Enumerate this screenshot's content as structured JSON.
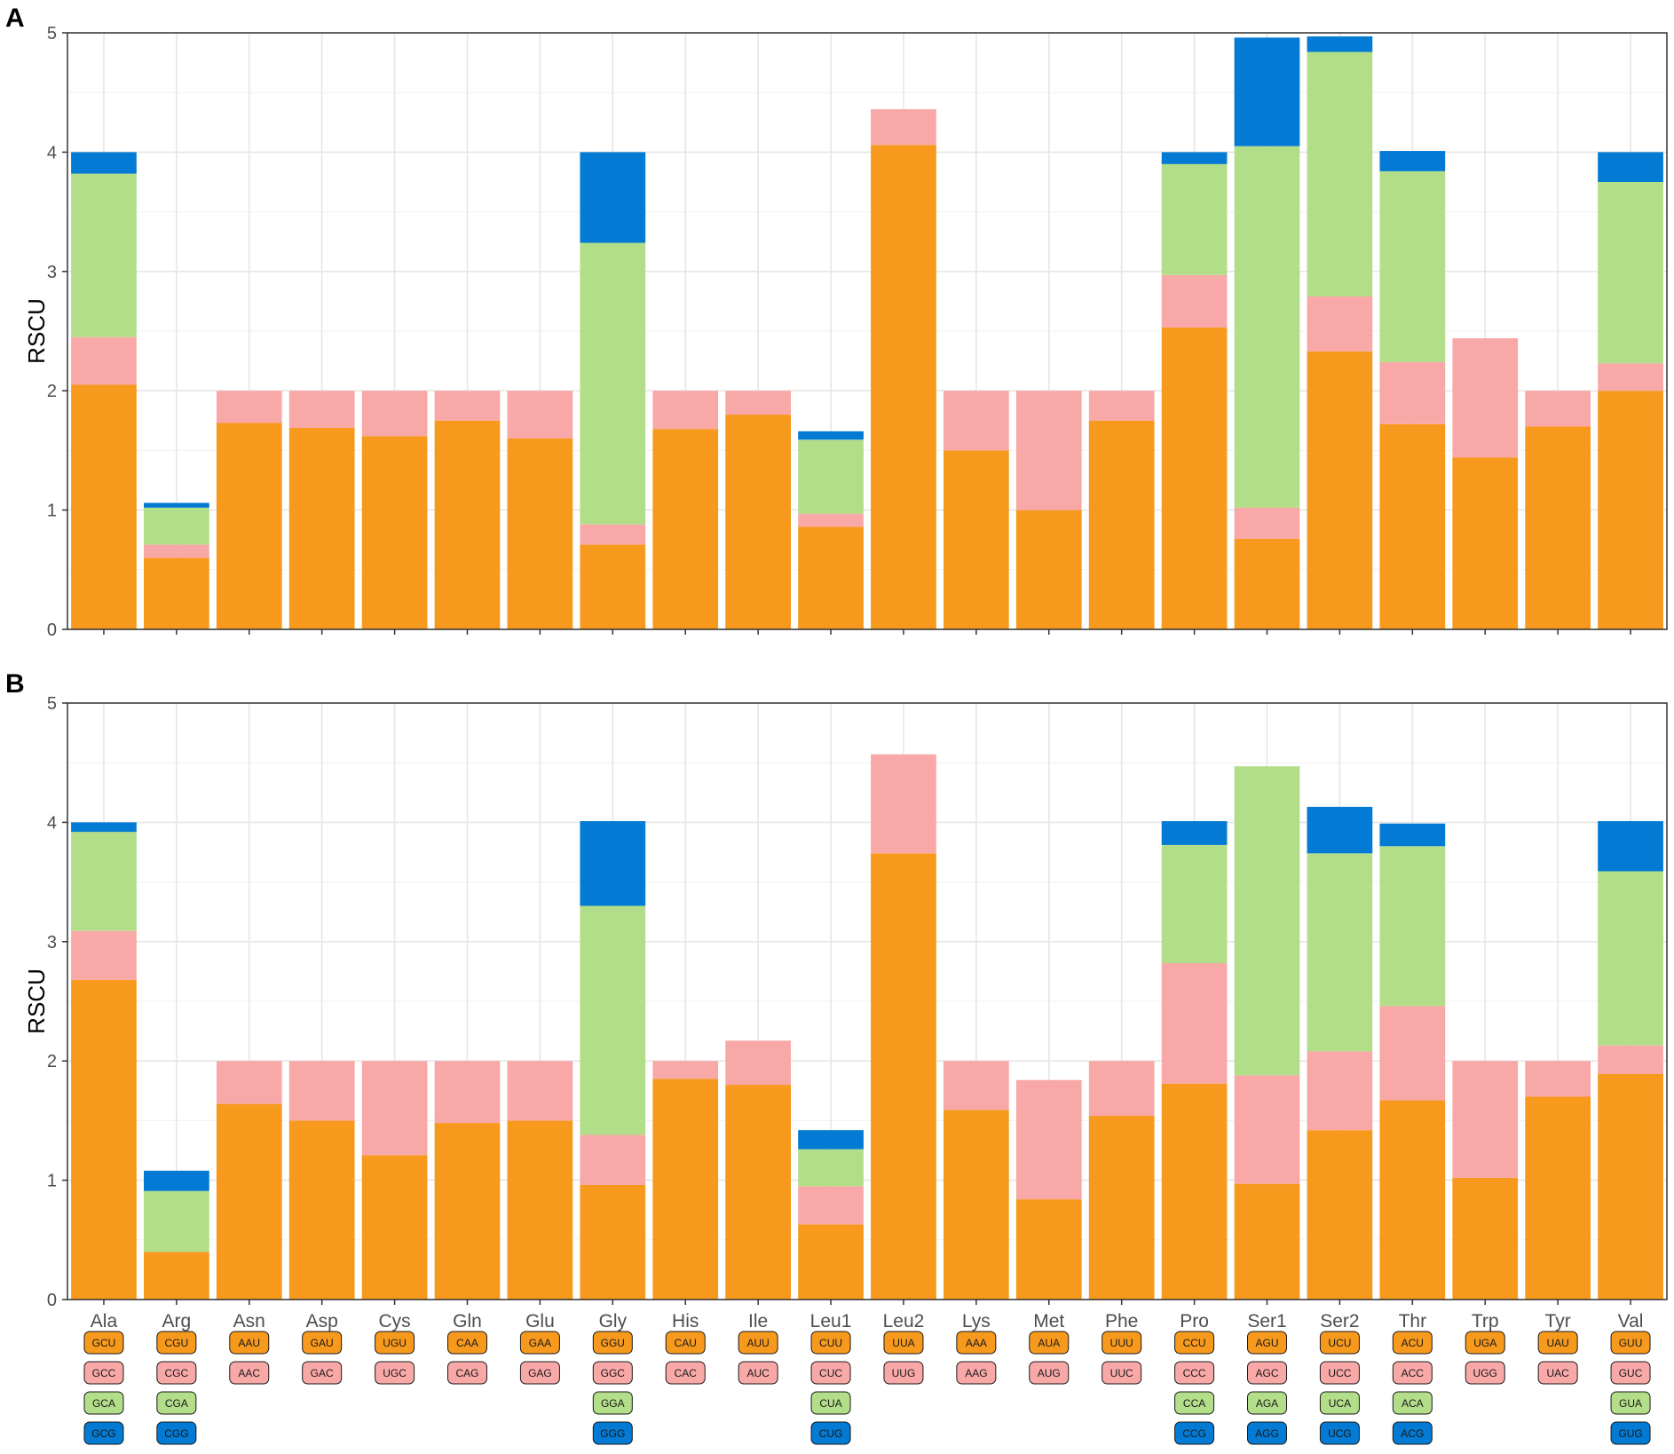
{
  "figure": {
    "panels": [
      "A",
      "B"
    ],
    "ylabel": "RSCU"
  },
  "colors": {
    "orange": "#F7991C",
    "pink": "#F9A8A8",
    "green": "#B3DE89",
    "blue": "#037AD3",
    "grid": "#e6e6e6",
    "frame": "#333333"
  },
  "chart_data": [
    {
      "panel": "A",
      "type": "bar",
      "stacked": true,
      "ylabel": "RSCU",
      "ylim": [
        0,
        5
      ],
      "yticks": [
        "0",
        "1",
        "2",
        "3",
        "4",
        "5"
      ],
      "categories": [
        "Ala",
        "Arg",
        "Asn",
        "Asp",
        "Cys",
        "Gln",
        "Glu",
        "Gly",
        "His",
        "Ile",
        "Leu1",
        "Leu2",
        "Lys",
        "Met",
        "Phe",
        "Pro",
        "Ser1",
        "Ser2",
        "Thr",
        "Trp",
        "Tyr",
        "Val"
      ],
      "series": [
        {
          "name": "codon1",
          "color": "orange",
          "values": [
            2.05,
            0.6,
            1.73,
            1.69,
            1.62,
            1.75,
            1.6,
            0.71,
            1.68,
            1.8,
            0.86,
            4.06,
            1.5,
            1.0,
            1.75,
            2.53,
            0.76,
            2.33,
            1.72,
            1.44,
            1.7,
            2.0
          ]
        },
        {
          "name": "codon2",
          "color": "pink",
          "values": [
            0.4,
            0.11,
            0.27,
            0.31,
            0.38,
            0.25,
            0.4,
            0.17,
            0.32,
            0.2,
            0.11,
            0.3,
            0.5,
            1.0,
            0.25,
            0.44,
            0.26,
            0.46,
            0.52,
            1.0,
            0.3,
            0.23
          ]
        },
        {
          "name": "codon3",
          "color": "green",
          "values": [
            1.37,
            0.31,
            0,
            0,
            0,
            0,
            0,
            2.36,
            0,
            0,
            0.62,
            0,
            0,
            0,
            0,
            0.93,
            3.03,
            2.05,
            1.6,
            0,
            0,
            1.52
          ]
        },
        {
          "name": "codon4",
          "color": "blue",
          "values": [
            0.18,
            0.04,
            0,
            0,
            0,
            0,
            0,
            0.76,
            0,
            0,
            0.07,
            0,
            0,
            0,
            0,
            0.1,
            0.91,
            0.13,
            0.17,
            0,
            0,
            0.25
          ]
        }
      ]
    },
    {
      "panel": "B",
      "type": "bar",
      "stacked": true,
      "ylabel": "RSCU",
      "ylim": [
        0,
        5
      ],
      "yticks": [
        "0",
        "1",
        "2",
        "3",
        "4",
        "5"
      ],
      "categories": [
        "Ala",
        "Arg",
        "Asn",
        "Asp",
        "Cys",
        "Gln",
        "Glu",
        "Gly",
        "His",
        "Ile",
        "Leu1",
        "Leu2",
        "Lys",
        "Met",
        "Phe",
        "Pro",
        "Ser1",
        "Ser2",
        "Thr",
        "Trp",
        "Tyr",
        "Val"
      ],
      "series": [
        {
          "name": "codon1",
          "color": "orange",
          "values": [
            2.68,
            0.4,
            1.64,
            1.5,
            1.21,
            1.48,
            1.5,
            0.96,
            1.85,
            1.8,
            0.63,
            3.74,
            1.59,
            0.84,
            1.54,
            1.81,
            0.97,
            1.42,
            1.67,
            1.02,
            1.7,
            1.89
          ]
        },
        {
          "name": "codon2",
          "color": "pink",
          "values": [
            0.41,
            0,
            0.36,
            0.5,
            0.79,
            0.52,
            0.5,
            0.42,
            0.15,
            0.37,
            0.32,
            0.83,
            0.41,
            1.0,
            0.46,
            1.01,
            0.91,
            0.66,
            0.79,
            0.98,
            0.3,
            0.24
          ]
        },
        {
          "name": "codon3",
          "color": "green",
          "values": [
            0.83,
            0.51,
            0,
            0,
            0,
            0,
            0,
            1.92,
            0,
            0,
            0.31,
            0,
            0,
            0,
            0,
            0.99,
            2.59,
            1.66,
            1.34,
            0,
            0,
            1.46
          ]
        },
        {
          "name": "codon4",
          "color": "blue",
          "values": [
            0.08,
            0.17,
            0,
            0,
            0,
            0,
            0,
            0.71,
            0,
            0,
            0.16,
            0,
            0,
            0,
            0,
            0.2,
            0,
            0.39,
            0.19,
            0,
            0,
            0.42
          ]
        }
      ]
    }
  ],
  "codon_legend": [
    {
      "aa": "Ala",
      "codons": [
        "GCU",
        "GCC",
        "GCA",
        "GCG"
      ]
    },
    {
      "aa": "Arg",
      "codons": [
        "CGU",
        "CGC",
        "CGA",
        "CGG"
      ]
    },
    {
      "aa": "Asn",
      "codons": [
        "AAU",
        "AAC"
      ]
    },
    {
      "aa": "Asp",
      "codons": [
        "GAU",
        "GAC"
      ]
    },
    {
      "aa": "Cys",
      "codons": [
        "UGU",
        "UGC"
      ]
    },
    {
      "aa": "Gln",
      "codons": [
        "CAA",
        "CAG"
      ]
    },
    {
      "aa": "Glu",
      "codons": [
        "GAA",
        "GAG"
      ]
    },
    {
      "aa": "Gly",
      "codons": [
        "GGU",
        "GGC",
        "GGA",
        "GGG"
      ]
    },
    {
      "aa": "His",
      "codons": [
        "CAU",
        "CAC"
      ]
    },
    {
      "aa": "Ile",
      "codons": [
        "AUU",
        "AUC"
      ]
    },
    {
      "aa": "Leu1",
      "codons": [
        "CUU",
        "CUC",
        "CUA",
        "CUG"
      ]
    },
    {
      "aa": "Leu2",
      "codons": [
        "UUA",
        "UUG"
      ]
    },
    {
      "aa": "Lys",
      "codons": [
        "AAA",
        "AAG"
      ]
    },
    {
      "aa": "Met",
      "codons": [
        "AUA",
        "AUG"
      ]
    },
    {
      "aa": "Phe",
      "codons": [
        "UUU",
        "UUC"
      ]
    },
    {
      "aa": "Pro",
      "codons": [
        "CCU",
        "CCC",
        "CCA",
        "CCG"
      ]
    },
    {
      "aa": "Ser1",
      "codons": [
        "AGU",
        "AGC",
        "AGA",
        "AGG"
      ]
    },
    {
      "aa": "Ser2",
      "codons": [
        "UCU",
        "UCC",
        "UCA",
        "UCG"
      ]
    },
    {
      "aa": "Thr",
      "codons": [
        "ACU",
        "ACC",
        "ACA",
        "ACG"
      ]
    },
    {
      "aa": "Trp",
      "codons": [
        "UGA",
        "UGG"
      ]
    },
    {
      "aa": "Tyr",
      "codons": [
        "UAU",
        "UAC"
      ]
    },
    {
      "aa": "Val",
      "codons": [
        "GUU",
        "GUC",
        "GUA",
        "GUG"
      ]
    }
  ]
}
